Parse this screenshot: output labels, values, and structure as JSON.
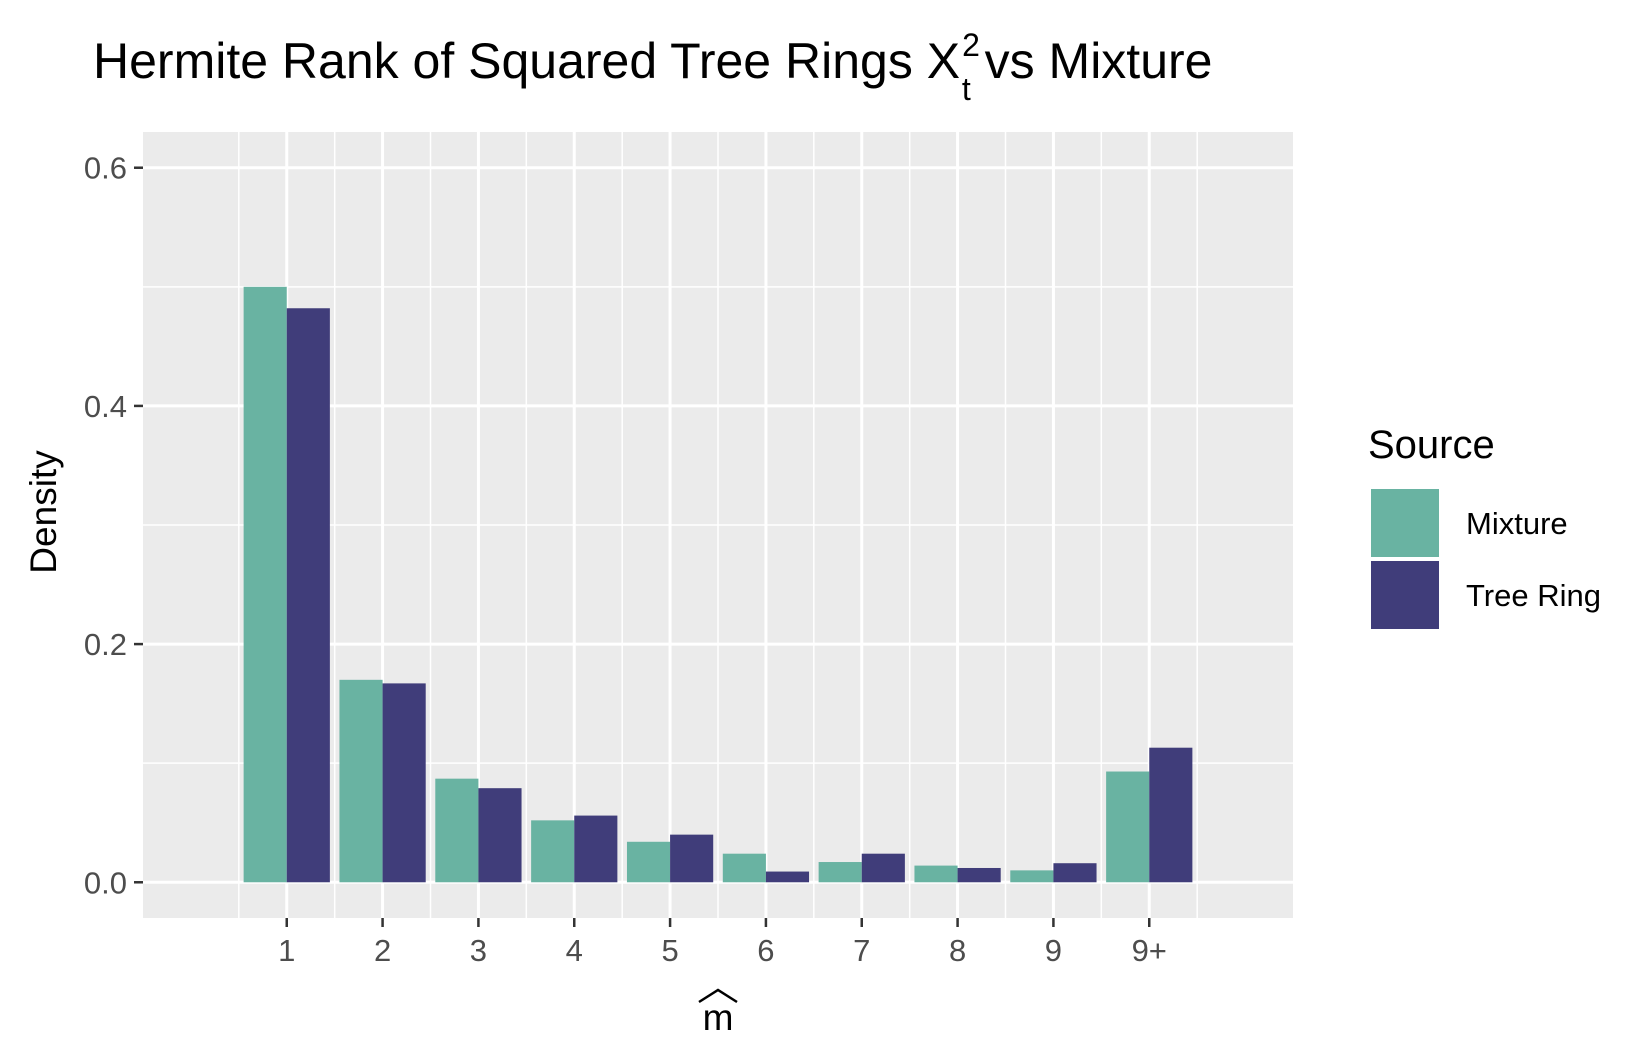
{
  "chart_data": {
    "type": "bar",
    "title": {
      "main": "Hermite Rank of Squared Tree Rings X",
      "superscript": "2",
      "subscript": "t",
      "suffix": " vs Mixture"
    },
    "xlabel": "m",
    "ylabel": "Density",
    "categories": [
      "1",
      "2",
      "3",
      "4",
      "5",
      "6",
      "7",
      "8",
      "9",
      "9+"
    ],
    "series": [
      {
        "name": "Mixture",
        "color": "#69b3a2",
        "values": [
          0.5,
          0.17,
          0.087,
          0.052,
          0.034,
          0.024,
          0.017,
          0.014,
          0.01,
          0.093
        ]
      },
      {
        "name": "Tree Ring",
        "color": "#403d7a",
        "values": [
          0.482,
          0.167,
          0.079,
          0.056,
          0.04,
          0.009,
          0.024,
          0.012,
          0.016,
          0.113
        ]
      }
    ],
    "ylim": [
      -0.03,
      0.63
    ],
    "yticks": [
      0.0,
      0.2,
      0.4,
      0.6
    ],
    "ytick_labels": [
      "0.0",
      "0.2",
      "0.4",
      "0.6"
    ],
    "legend": {
      "title": "Source",
      "position": "right"
    },
    "grid": true,
    "panel_background": "#ebebeb",
    "grid_color": "#ffffff"
  }
}
